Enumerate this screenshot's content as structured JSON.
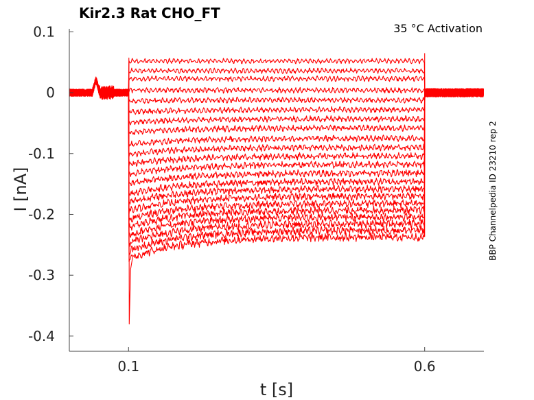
{
  "chart_data": {
    "type": "line",
    "title": "Kir2.3  Rat  CHO_FT",
    "annotation": "35 °C  Activation",
    "side_label": "BBP Channelpedia ID 23210 rep 2",
    "xlabel": "t [s]",
    "ylabel": "I [nA]",
    "xlim": [
      0.0,
      0.7
    ],
    "ylim": [
      -0.425,
      0.105
    ],
    "x_ticks": [
      0.1,
      0.6
    ],
    "x_tick_labels": [
      "0.1",
      "0.6"
    ],
    "y_ticks": [
      0.1,
      0,
      -0.1,
      -0.2,
      -0.3,
      -0.4
    ],
    "y_tick_labels": [
      "0.1",
      "0",
      "-0.1",
      "-0.2",
      "-0.3",
      "-0.4"
    ],
    "grid": false,
    "trace_color": "#ff0000",
    "pulse_start_s": 0.1,
    "pulse_end_s": 0.6,
    "holding_current_nA": 0.0,
    "onset_transient_min_nA": -0.38,
    "series_steady_state_nA": [
      0.052,
      0.036,
      0.023,
      0.004,
      -0.012,
      -0.028,
      -0.043,
      -0.058,
      -0.075,
      -0.09,
      -0.104,
      -0.118,
      -0.132,
      -0.146,
      -0.158,
      -0.17,
      -0.182,
      -0.193,
      -0.204,
      -0.215,
      -0.226,
      -0.237
    ],
    "series_onset_extra_nA": [
      0.0,
      0.0,
      0.0,
      0.0,
      -0.002,
      -0.004,
      -0.006,
      -0.008,
      -0.01,
      -0.012,
      -0.014,
      -0.016,
      -0.018,
      -0.02,
      -0.022,
      -0.024,
      -0.026,
      -0.028,
      -0.03,
      -0.032,
      -0.034,
      -0.036
    ]
  }
}
